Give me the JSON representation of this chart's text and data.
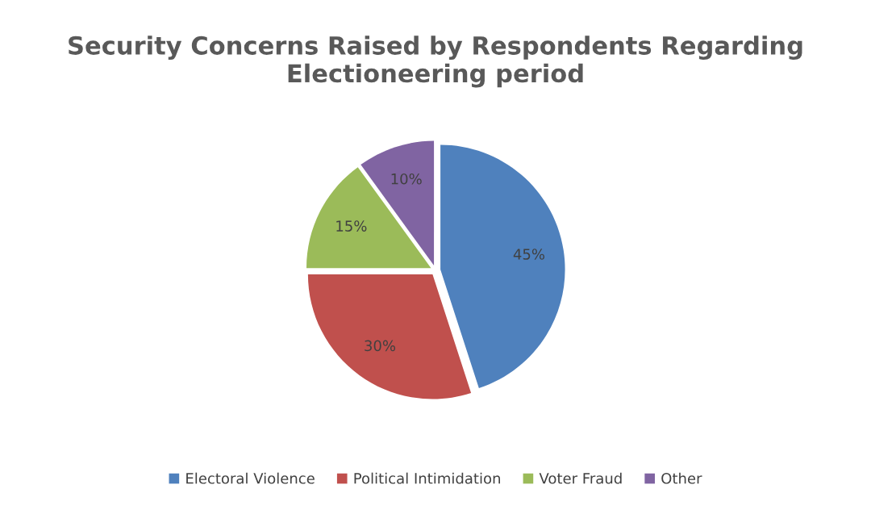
{
  "chart_data": {
    "type": "pie",
    "title": "Security Concerns Raised by Respondents Regarding Electioneering period",
    "categories": [
      "Electoral Violence",
      "Political Intimidation",
      "Voter Fraud",
      "Other"
    ],
    "values": [
      45,
      30,
      15,
      10
    ],
    "colors": [
      "#4f81bd",
      "#c0504d",
      "#9bbb59",
      "#8064a2"
    ],
    "value_labels": [
      "45%",
      "30%",
      "15%",
      "10%"
    ],
    "legend": "bottom"
  }
}
